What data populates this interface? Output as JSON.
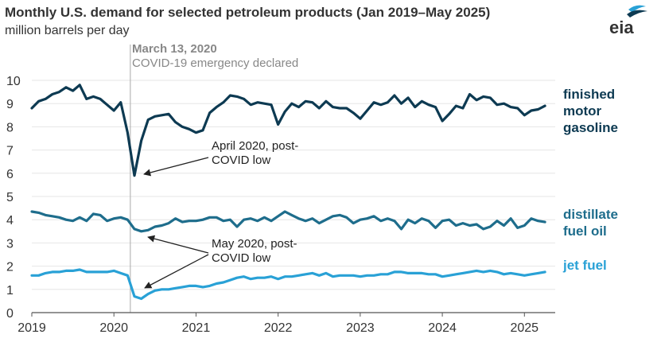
{
  "logo": {
    "text": "eia"
  },
  "chart_data": {
    "type": "line",
    "title": "Monthly U.S. demand for selected petroleum products (Jan 2019–May 2025)",
    "subtitle": "million barrels per day",
    "ylim": [
      0,
      10
    ],
    "yticks": [
      0,
      1,
      2,
      3,
      4,
      5,
      6,
      7,
      8,
      9,
      10
    ],
    "xlim": [
      2019.0,
      2025.375
    ],
    "xticks": [
      "2019",
      "2020",
      "2021",
      "2022",
      "2023",
      "2024",
      "2025"
    ],
    "grid": true,
    "colors": {
      "finished_motor_gasoline": "#0d3a52",
      "distillate_fuel_oil": "#1e6d8c",
      "jet_fuel": "#29a1d6",
      "grid": "#e6e6e6",
      "event_line": "#aaaaaa"
    },
    "series_labels": {
      "gasoline": [
        "finished",
        "motor",
        "gasoline"
      ],
      "distillate": [
        "distillate",
        "fuel oil"
      ],
      "jet": [
        "jet fuel"
      ]
    },
    "series": [
      {
        "key": "gasoline",
        "values": [
          8.8,
          9.1,
          9.2,
          9.4,
          9.5,
          9.7,
          9.55,
          9.8,
          9.2,
          9.3,
          9.2,
          8.95,
          8.7,
          9.05,
          7.75,
          5.9,
          7.4,
          8.3,
          8.45,
          8.5,
          8.55,
          8.2,
          8.0,
          7.9,
          7.75,
          7.85,
          8.6,
          8.85,
          9.05,
          9.35,
          9.3,
          9.2,
          8.95,
          9.05,
          9.0,
          8.95,
          8.1,
          8.65,
          9.0,
          8.85,
          9.1,
          9.05,
          8.8,
          9.1,
          8.85,
          8.8,
          8.8,
          8.6,
          8.35,
          8.7,
          9.05,
          8.95,
          9.05,
          9.35,
          9.0,
          9.25,
          8.85,
          9.1,
          8.95,
          8.85,
          8.25,
          8.55,
          8.9,
          8.8,
          9.4,
          9.15,
          9.3,
          9.25,
          8.95,
          9.0,
          8.85,
          8.8,
          8.5,
          8.7,
          8.75,
          8.9
        ]
      },
      {
        "key": "distillate",
        "values": [
          4.35,
          4.3,
          4.2,
          4.15,
          4.1,
          4.0,
          3.95,
          4.1,
          3.95,
          4.25,
          4.2,
          3.95,
          4.05,
          4.1,
          4.0,
          3.6,
          3.5,
          3.55,
          3.7,
          3.75,
          3.85,
          4.05,
          3.9,
          3.95,
          3.95,
          4.0,
          4.1,
          4.1,
          3.95,
          4.0,
          3.7,
          4.0,
          4.05,
          3.95,
          4.1,
          3.95,
          4.15,
          4.35,
          4.2,
          4.05,
          3.95,
          4.05,
          3.85,
          4.0,
          4.15,
          4.2,
          4.1,
          3.85,
          4.0,
          4.05,
          4.15,
          3.95,
          4.05,
          3.95,
          3.6,
          4.0,
          3.85,
          4.05,
          3.95,
          3.65,
          3.95,
          4.0,
          3.75,
          3.85,
          3.75,
          3.8,
          3.6,
          3.7,
          3.95,
          3.75,
          4.05,
          3.65,
          3.75,
          4.05,
          3.95,
          3.9
        ]
      },
      {
        "key": "jet",
        "values": [
          1.6,
          1.6,
          1.7,
          1.75,
          1.75,
          1.8,
          1.8,
          1.85,
          1.75,
          1.75,
          1.75,
          1.75,
          1.8,
          1.7,
          1.6,
          0.7,
          0.6,
          0.8,
          0.95,
          1.0,
          1.0,
          1.05,
          1.1,
          1.15,
          1.15,
          1.1,
          1.15,
          1.25,
          1.3,
          1.4,
          1.5,
          1.55,
          1.45,
          1.5,
          1.5,
          1.55,
          1.45,
          1.55,
          1.55,
          1.6,
          1.65,
          1.7,
          1.6,
          1.7,
          1.55,
          1.6,
          1.6,
          1.6,
          1.55,
          1.6,
          1.6,
          1.65,
          1.65,
          1.75,
          1.75,
          1.7,
          1.7,
          1.7,
          1.65,
          1.65,
          1.55,
          1.6,
          1.65,
          1.7,
          1.75,
          1.8,
          1.75,
          1.8,
          1.75,
          1.65,
          1.7,
          1.65,
          1.6,
          1.65,
          1.7,
          1.75
        ]
      }
    ],
    "annotations": {
      "event_date": "March 13, 2020",
      "event_text": "COVID-19 emergency declared",
      "gas_low": [
        "April 2020, post-",
        "COVID low"
      ],
      "jet_low": [
        "May 2020, post-",
        "COVID low"
      ]
    }
  }
}
